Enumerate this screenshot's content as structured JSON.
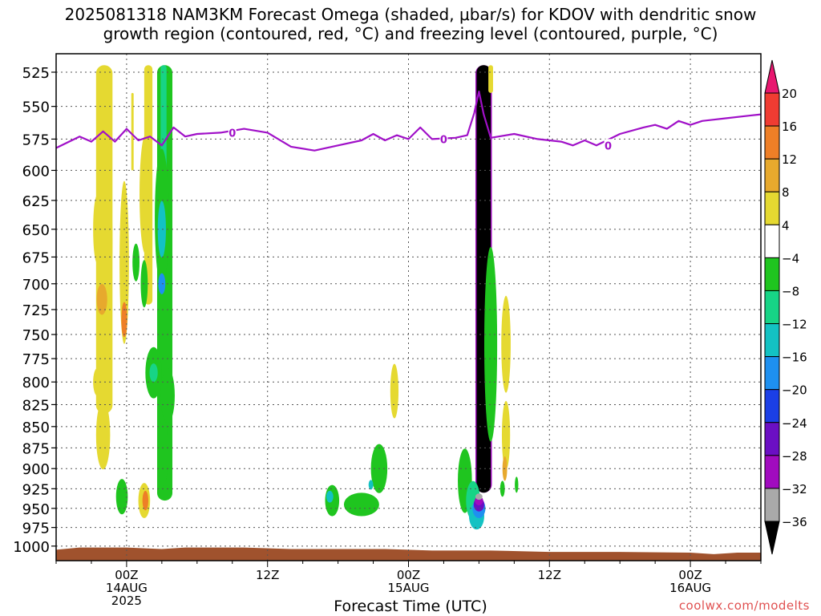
{
  "chart_data": {
    "type": "heatmap",
    "title_line1": "2025081318 NAM3KM Forecast Omega (shaded, μbar/s) for KDOV with dendritic snow",
    "title_line2": "growth region (contoured, red, °C) and freezing level (contoured, purple, °C)",
    "xlabel": "Forecast Time (UTC)",
    "credit": "coolwx.com/modelts",
    "x_ticks": [
      {
        "hours": 6,
        "label": "00Z",
        "sub1": "14AUG",
        "sub2": "2025"
      },
      {
        "hours": 18,
        "label": "12Z",
        "sub1": "",
        "sub2": ""
      },
      {
        "hours": 30,
        "label": "00Z",
        "sub1": "15AUG",
        "sub2": ""
      },
      {
        "hours": 42,
        "label": "12Z",
        "sub1": "",
        "sub2": ""
      },
      {
        "hours": 54,
        "label": "00Z",
        "sub1": "16AUG",
        "sub2": ""
      }
    ],
    "y_ticks": [
      525,
      550,
      575,
      600,
      625,
      650,
      675,
      700,
      725,
      750,
      775,
      800,
      825,
      850,
      875,
      900,
      925,
      950,
      975,
      1000
    ],
    "colorbar": {
      "labels": [
        "20",
        "16",
        "12",
        "8",
        "4",
        "−4",
        "−8",
        "−12",
        "−16",
        "−20",
        "−24",
        "−28",
        "−32",
        "−36"
      ],
      "colors": [
        "#e8176f",
        "#f03c32",
        "#ee7f27",
        "#e7a92d",
        "#e5d931",
        "#ffffff",
        "#1fc51f",
        "#17d486",
        "#13c2c3",
        "#1e90f0",
        "#1b3fe6",
        "#6b0fc4",
        "#a10bbf",
        "#a9a9a9",
        "#000000"
      ]
    },
    "freezing_level_label": "0",
    "freezing_level": [
      [
        0,
        582
      ],
      [
        2,
        573
      ],
      [
        3,
        577
      ],
      [
        4,
        569
      ],
      [
        5,
        577
      ],
      [
        6,
        567
      ],
      [
        7,
        576
      ],
      [
        8,
        573
      ],
      [
        9,
        580
      ],
      [
        10,
        566
      ],
      [
        11,
        573
      ],
      [
        12,
        571
      ],
      [
        14,
        570
      ],
      [
        16,
        567
      ],
      [
        18,
        570
      ],
      [
        20,
        581
      ],
      [
        22,
        584
      ],
      [
        24,
        580
      ],
      [
        26,
        576
      ],
      [
        27,
        571
      ],
      [
        28,
        576
      ],
      [
        29,
        572
      ],
      [
        30,
        575
      ],
      [
        31,
        566
      ],
      [
        32,
        575
      ],
      [
        34,
        574
      ],
      [
        35,
        572
      ],
      [
        35.6,
        555
      ],
      [
        36,
        539
      ],
      [
        36.4,
        556
      ],
      [
        37,
        574
      ],
      [
        39,
        571
      ],
      [
        41,
        575
      ],
      [
        43,
        577
      ],
      [
        44,
        580
      ],
      [
        45,
        576
      ],
      [
        46,
        580
      ],
      [
        48,
        571
      ],
      [
        50,
        566
      ],
      [
        51,
        564
      ],
      [
        52,
        567
      ],
      [
        53,
        561
      ],
      [
        54,
        564
      ],
      [
        55,
        561
      ],
      [
        57,
        559
      ],
      [
        59,
        557
      ],
      [
        60,
        556
      ]
    ],
    "ground_line": [
      [
        0,
        1005
      ],
      [
        2,
        1002
      ],
      [
        4,
        1002
      ],
      [
        6,
        1002
      ],
      [
        9,
        1004
      ],
      [
        11,
        1002
      ],
      [
        16,
        1002
      ],
      [
        20,
        1004
      ],
      [
        24,
        1004
      ],
      [
        28,
        1004
      ],
      [
        32,
        1006
      ],
      [
        37,
        1006
      ],
      [
        42,
        1008
      ],
      [
        48,
        1008
      ],
      [
        54,
        1009
      ],
      [
        56,
        1011
      ],
      [
        58,
        1009
      ],
      [
        60,
        1009
      ]
    ],
    "omega_shades": [
      {
        "t": 3.5,
        "p": 650,
        "wt": 0.35,
        "hp": 60,
        "color": "#e5d931"
      },
      {
        "t": 3.5,
        "p": 800,
        "wt": 0.35,
        "hp": 30,
        "color": "#e5d931"
      },
      {
        "t": 4.1,
        "p": 660,
        "wt": 0.7,
        "hp": 140,
        "color": "#e5d931"
      },
      {
        "t": 4.0,
        "p": 860,
        "wt": 0.6,
        "hp": 80,
        "color": "#e5d931"
      },
      {
        "t": 3.9,
        "p": 715,
        "wt": 0.45,
        "hp": 30,
        "color": "#e7a92d"
      },
      {
        "t": 5.8,
        "p": 680,
        "wt": 0.4,
        "hp": 150,
        "color": "#e5d931"
      },
      {
        "t": 5.8,
        "p": 735,
        "wt": 0.25,
        "hp": 35,
        "color": "#ee7f27"
      },
      {
        "t": 7.6,
        "p": 620,
        "wt": 0.5,
        "hp": 100,
        "color": "#e5d931"
      },
      {
        "t": 9.0,
        "p": 640,
        "wt": 0.6,
        "hp": 120,
        "color": "#1fc51f"
      },
      {
        "t": 8.3,
        "p": 790,
        "wt": 0.7,
        "hp": 55,
        "color": "#1fc51f"
      },
      {
        "t": 8.3,
        "p": 790,
        "wt": 0.35,
        "hp": 20,
        "color": "#17d486"
      },
      {
        "t": 9.5,
        "p": 815,
        "wt": 0.6,
        "hp": 60,
        "color": "#1fc51f"
      },
      {
        "t": 9.1,
        "p": 880,
        "wt": 0.45,
        "hp": 80,
        "color": "#1fc51f"
      },
      {
        "t": 9.0,
        "p": 650,
        "wt": 0.35,
        "hp": 50,
        "color": "#13c2c3"
      },
      {
        "t": 9.0,
        "p": 700,
        "wt": 0.3,
        "hp": 20,
        "color": "#1e90f0"
      },
      {
        "t": 7.5,
        "p": 700,
        "wt": 0.3,
        "hp": 45,
        "color": "#1fc51f"
      },
      {
        "t": 6.8,
        "p": 680,
        "wt": 0.3,
        "hp": 35,
        "color": "#1fc51f"
      },
      {
        "t": 5.6,
        "p": 935,
        "wt": 0.5,
        "hp": 45,
        "color": "#1fc51f"
      },
      {
        "t": 7.5,
        "p": 940,
        "wt": 0.5,
        "hp": 45,
        "color": "#e5d931"
      },
      {
        "t": 7.6,
        "p": 940,
        "wt": 0.25,
        "hp": 25,
        "color": "#ee7f27"
      },
      {
        "t": 23.5,
        "p": 940,
        "wt": 0.6,
        "hp": 40,
        "color": "#1fc51f"
      },
      {
        "t": 23.3,
        "p": 935,
        "wt": 0.3,
        "hp": 15,
        "color": "#13c2c3"
      },
      {
        "t": 26.0,
        "p": 945,
        "wt": 1.5,
        "hp": 30,
        "color": "#1fc51f"
      },
      {
        "t": 27.5,
        "p": 900,
        "wt": 0.7,
        "hp": 60,
        "color": "#1fc51f"
      },
      {
        "t": 26.8,
        "p": 920,
        "wt": 0.2,
        "hp": 12,
        "color": "#13c2c3"
      },
      {
        "t": 28.8,
        "p": 810,
        "wt": 0.35,
        "hp": 60,
        "color": "#e5d931"
      },
      {
        "t": 34.8,
        "p": 915,
        "wt": 0.6,
        "hp": 80,
        "color": "#1fc51f"
      },
      {
        "t": 35.5,
        "p": 940,
        "wt": 0.6,
        "hp": 50,
        "color": "#17d486"
      },
      {
        "t": 35.8,
        "p": 960,
        "wt": 0.65,
        "hp": 35,
        "color": "#13c2c3"
      },
      {
        "t": 36.0,
        "p": 950,
        "wt": 0.55,
        "hp": 25,
        "color": "#1e90f0"
      },
      {
        "t": 36.0,
        "p": 945,
        "wt": 0.45,
        "hp": 18,
        "color": "#6b0fc4"
      },
      {
        "t": 36.0,
        "p": 940,
        "wt": 0.35,
        "hp": 12,
        "color": "#a10bbf"
      },
      {
        "t": 36.0,
        "p": 935,
        "wt": 0.3,
        "hp": 8,
        "color": "#a9a9a9"
      },
      {
        "t": 37.0,
        "p": 760,
        "wt": 0.55,
        "hp": 200,
        "color": "#1fc51f"
      },
      {
        "t": 38.3,
        "p": 760,
        "wt": 0.4,
        "hp": 100,
        "color": "#e5d931"
      },
      {
        "t": 38.3,
        "p": 860,
        "wt": 0.35,
        "hp": 80,
        "color": "#e5d931"
      },
      {
        "t": 38.2,
        "p": 900,
        "wt": 0.2,
        "hp": 30,
        "color": "#e7a92d"
      },
      {
        "t": 38.0,
        "p": 925,
        "wt": 0.2,
        "hp": 20,
        "color": "#1fc51f"
      },
      {
        "t": 39.2,
        "p": 920,
        "wt": 0.15,
        "hp": 20,
        "color": "#1fc51f"
      }
    ],
    "omega_columns": [
      {
        "t0": 3.4,
        "t1": 4.8,
        "p0": 520,
        "p1": 835,
        "color": "#e5d931"
      },
      {
        "t0": 6.4,
        "t1": 6.6,
        "p0": 540,
        "p1": 600,
        "color": "#e5d931"
      },
      {
        "t0": 7.5,
        "t1": 8.2,
        "p0": 520,
        "p1": 720,
        "color": "#e5d931"
      },
      {
        "t0": 8.6,
        "t1": 9.9,
        "p0": 520,
        "p1": 940,
        "color": "#1fc51f"
      },
      {
        "t0": 8.9,
        "t1": 9.4,
        "p0": 520,
        "p1": 600,
        "color": "#17d486"
      },
      {
        "t0": 35.7,
        "t1": 37.1,
        "p0": 520,
        "p1": 930,
        "color": "#a10bbf"
      },
      {
        "t0": 35.8,
        "t1": 37.0,
        "p0": 520,
        "p1": 930,
        "color": "#000000"
      },
      {
        "t0": 36.8,
        "t1": 37.2,
        "p0": 520,
        "p1": 540,
        "color": "#e5d931"
      }
    ]
  }
}
